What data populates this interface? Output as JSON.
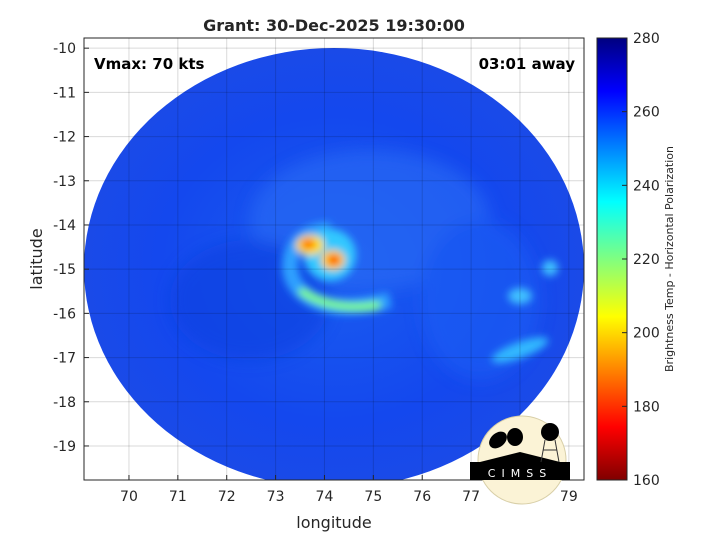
{
  "chart_data": {
    "type": "heatmap",
    "title": "Grant: 30-Dec-2025 19:30:00",
    "xlabel": "longitude",
    "ylabel": "latitude",
    "xlim": [
      69.08,
      79.31
    ],
    "ylim": [
      -19.77,
      -9.77
    ],
    "xticks": [
      "70",
      "71",
      "72",
      "73",
      "74",
      "75",
      "76",
      "77",
      "78",
      "79"
    ],
    "yticks": [
      "-10",
      "-11",
      "-12",
      "-13",
      "-14",
      "-15",
      "-16",
      "-17",
      "-18",
      "-19"
    ],
    "grid": true,
    "annotations": {
      "vmax": "Vmax: 70 kts",
      "away": "03:01 away"
    },
    "colorbar": {
      "label": "Brightness Temp - Horizontal Polarization",
      "range": [
        160,
        280
      ],
      "ticks": [
        "160",
        "180",
        "200",
        "220",
        "240",
        "260",
        "280"
      ],
      "colormap": "jet"
    },
    "storm_center": {
      "lon": 74.0,
      "lat": -14.8
    },
    "logo": "CIMSS"
  }
}
